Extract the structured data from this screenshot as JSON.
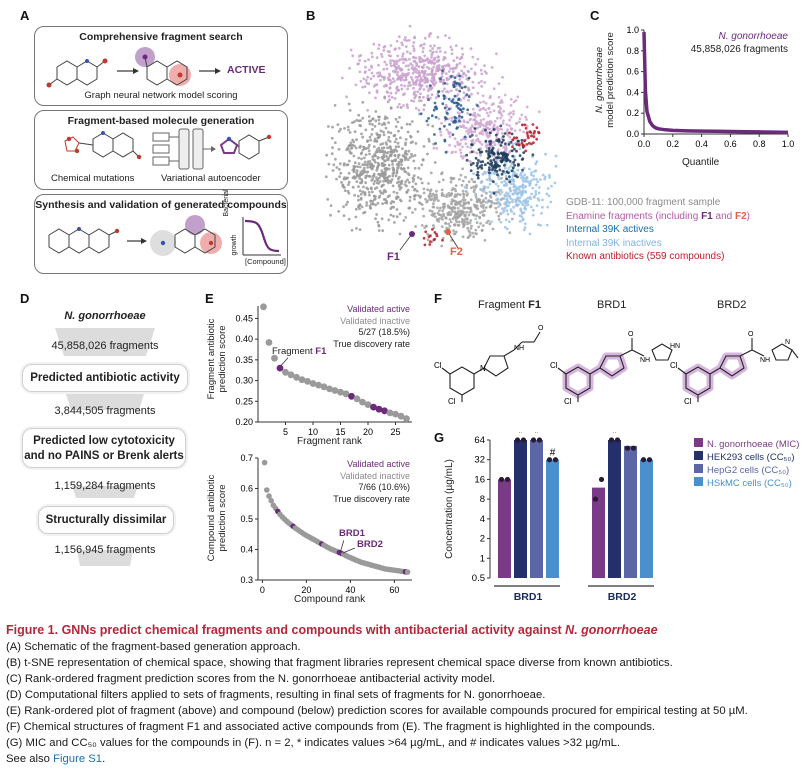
{
  "panel_a": {
    "label": "A",
    "box1_title": "Comprehensive fragment search",
    "box1_active": "ACTIVE",
    "box1_caption": "Graph neural network model scoring",
    "box2_title": "Fragment-based molecule generation",
    "box2_left_caption": "Chemical mutations",
    "box2_right_caption": "Variational autoencoder",
    "box3_title": "Synthesis and validation of generated compounds",
    "box3_ylabel_1": "Bacterial",
    "box3_ylabel_2": "growth",
    "box3_xlabel": "[Compound]"
  },
  "panel_b": {
    "label": "B",
    "f1": "F1",
    "f2": "F2",
    "legend": [
      {
        "text": "GDB-11: 100,000 fragment sample",
        "color": "#8c8c8c"
      },
      {
        "text": "Enamine fragments (including ",
        "bold1": "F1",
        "mid": " and ",
        "bold2": "F2",
        "end": ")",
        "color": "#b65aa8"
      },
      {
        "text": "Internal 39K actives",
        "color": "#1a6fb0"
      },
      {
        "text": "Internal 39K inactives",
        "color": "#7fb3e0"
      },
      {
        "text": "Known antibiotics (559 compounds)",
        "color": "#b81e2a"
      }
    ]
  },
  "panel_c": {
    "label": "C",
    "legend_line1": "N. gonorrhoeae",
    "legend_line2": "45,858,026 fragments",
    "ylabel_1": "N. gonorrhoeae",
    "ylabel_2": "model prediction score",
    "xlabel": "Quantile",
    "chart_data": {
      "type": "line",
      "x": [
        0.0,
        0.005,
        0.01,
        0.02,
        0.04,
        0.06,
        0.08,
        0.1,
        0.15,
        0.2,
        0.3,
        0.4,
        0.5,
        0.6,
        0.7,
        0.8,
        0.9,
        1.0
      ],
      "y": [
        0.98,
        0.7,
        0.42,
        0.22,
        0.12,
        0.08,
        0.06,
        0.05,
        0.04,
        0.035,
        0.03,
        0.028,
        0.026,
        0.024,
        0.022,
        0.02,
        0.018,
        0.015
      ],
      "xlim": [
        0,
        1
      ],
      "ylim": [
        0,
        1
      ],
      "xticks": [
        "0.0",
        "0.2",
        "0.4",
        "0.6",
        "0.8",
        "1.0"
      ],
      "yticks": [
        "0.0",
        "0.2",
        "0.4",
        "0.6",
        "0.8",
        "1.0"
      ],
      "color": "#6b2a7a"
    }
  },
  "panel_d": {
    "label": "D",
    "title": "N. gonorrhoeae",
    "steps": [
      {
        "count": "45,858,026 fragments",
        "filter": "Predicted antibiotic activity"
      },
      {
        "count": "3,844,505 fragments",
        "filter": "Predicted low cytotoxicity and no PAINS or Brenk alerts"
      },
      {
        "count": "1,159,284 fragments",
        "filter": "Structurally dissimilar"
      },
      {
        "count": "1,156,945 fragments",
        "filter": ""
      }
    ]
  },
  "panel_e": {
    "label": "E",
    "top": {
      "legend_active": "Validated active",
      "legend_inactive": "Validated inactive",
      "legend_ratio": "5/27 (18.5%)",
      "legend_rate": "True discovery rate",
      "ylabel_1": "Fragment antibiotic",
      "ylabel_2": "prediction score",
      "xlabel": "Fragment rank",
      "annotation_prefix": "Fragment ",
      "annotation_bold": "F1",
      "chart_data": {
        "type": "scatter",
        "x": [
          1,
          2,
          3,
          4,
          5,
          6,
          7,
          8,
          9,
          10,
          11,
          12,
          13,
          14,
          15,
          16,
          17,
          18,
          19,
          20,
          21,
          22,
          23,
          24,
          25,
          26,
          27
        ],
        "y": [
          0.478,
          0.392,
          0.354,
          0.33,
          0.32,
          0.314,
          0.308,
          0.302,
          0.298,
          0.293,
          0.289,
          0.285,
          0.28,
          0.276,
          0.272,
          0.268,
          0.262,
          0.256,
          0.248,
          0.242,
          0.236,
          0.231,
          0.227,
          0.222,
          0.219,
          0.214,
          0.208
        ],
        "active": [
          0,
          0,
          0,
          1,
          0,
          0,
          0,
          0,
          0,
          0,
          0,
          0,
          0,
          0,
          0,
          0,
          1,
          0,
          0,
          0,
          1,
          1,
          1,
          0,
          0,
          0,
          0
        ],
        "xlim": [
          0,
          28
        ],
        "ylim": [
          0.2,
          0.48
        ],
        "xticks": [
          "5",
          "10",
          "15",
          "20",
          "25"
        ],
        "yticks": [
          "0.20",
          "0.25",
          "0.30",
          "0.35",
          "0.40",
          "0.45"
        ]
      }
    },
    "bottom": {
      "legend_active": "Validated active",
      "legend_inactive": "Validated inactive",
      "legend_ratio": "7/66 (10.6%)",
      "legend_rate": "True discovery rate",
      "ylabel_1": "Compound antibiotic",
      "ylabel_2": "prediction score",
      "xlabel": "Compound rank",
      "annotation_1": "BRD1",
      "annotation_2": "BRD2",
      "chart_data": {
        "type": "scatter",
        "x": [
          1,
          2,
          3,
          4,
          5,
          6,
          7,
          8,
          9,
          10,
          11,
          12,
          13,
          14,
          15,
          16,
          17,
          18,
          19,
          20,
          21,
          22,
          23,
          24,
          25,
          26,
          27,
          28,
          29,
          30,
          31,
          32,
          33,
          34,
          35,
          36,
          37,
          38,
          39,
          40,
          41,
          42,
          43,
          44,
          45,
          46,
          47,
          48,
          49,
          50,
          51,
          52,
          53,
          54,
          55,
          56,
          57,
          58,
          59,
          60,
          61,
          62,
          63,
          64,
          65,
          66
        ],
        "y": [
          0.685,
          0.595,
          0.575,
          0.56,
          0.545,
          0.535,
          0.525,
          0.515,
          0.507,
          0.5,
          0.493,
          0.487,
          0.481,
          0.476,
          0.47,
          0.465,
          0.46,
          0.455,
          0.45,
          0.446,
          0.442,
          0.438,
          0.434,
          0.43,
          0.426,
          0.422,
          0.418,
          0.414,
          0.41,
          0.406,
          0.402,
          0.399,
          0.396,
          0.393,
          0.39,
          0.387,
          0.384,
          0.38,
          0.376,
          0.373,
          0.37,
          0.367,
          0.364,
          0.361,
          0.358,
          0.356,
          0.354,
          0.352,
          0.35,
          0.348,
          0.346,
          0.344,
          0.342,
          0.34,
          0.338,
          0.336,
          0.335,
          0.334,
          0.333,
          0.332,
          0.331,
          0.33,
          0.329,
          0.328,
          0.327,
          0.326
        ],
        "active": [
          0,
          0,
          0,
          0,
          0,
          0,
          1,
          0,
          0,
          0,
          0,
          0,
          0,
          1,
          0,
          0,
          0,
          0,
          0,
          0,
          0,
          0,
          0,
          0,
          0,
          0,
          1,
          0,
          0,
          0,
          0,
          0,
          0,
          0,
          1,
          1,
          0,
          0,
          0,
          0,
          0,
          0,
          0,
          0,
          0,
          0,
          0,
          0,
          0,
          0,
          0,
          0,
          0,
          0,
          0,
          0,
          0,
          0,
          0,
          0,
          0,
          0,
          0,
          0,
          1,
          0
        ],
        "xlim": [
          -2,
          68
        ],
        "ylim": [
          0.3,
          0.7
        ],
        "xticks": [
          "0",
          "20",
          "40",
          "60"
        ],
        "yticks": [
          "0.3",
          "0.4",
          "0.5",
          "0.6",
          "0.7"
        ]
      }
    }
  },
  "panel_f": {
    "label": "F",
    "name1_prefix": "Fragment ",
    "name1_bold": "F1",
    "name2": "BRD1",
    "name3": "BRD2",
    "atom_cl": "Cl",
    "atom_n": "N",
    "atom_o": "O",
    "atom_nh": "NH",
    "atom_hn": "HN"
  },
  "panel_g": {
    "label": "G",
    "ylabel": "Concentration (µg/mL)",
    "groups": [
      "BRD1",
      "BRD2"
    ],
    "legend": [
      {
        "name": "N. gonorrhoeae (MIC)",
        "color": "#7a3b86"
      },
      {
        "name": "HEK293 cells (CC₅₀)",
        "color": "#23306b"
      },
      {
        "name": "HepG2 cells (CC₅₀)",
        "color": "#5a66a6"
      },
      {
        "name": "HSkMC cells (CC₅₀)",
        "color": "#4a90cc"
      }
    ],
    "chart_data": {
      "type": "bar",
      "scale": "log2",
      "categories": [
        "BRD1",
        "BRD2"
      ],
      "series": [
        {
          "name": "N. gonorrhoeae (MIC)",
          "values": [
            16,
            12
          ],
          "points": [
            [
              16,
              16
            ],
            [
              8,
              16
            ]
          ],
          "mark": [
            "",
            ""
          ]
        },
        {
          "name": "HEK293 cells (CC50)",
          "values": [
            64,
            64
          ],
          "points": [
            [
              64,
              64
            ],
            [
              64,
              64
            ]
          ],
          "mark": [
            "*",
            "*"
          ]
        },
        {
          "name": "HepG2 cells (CC50)",
          "values": [
            64,
            52
          ],
          "points": [
            [
              64,
              64
            ],
            [
              48,
              48
            ]
          ],
          "mark": [
            "*",
            ""
          ]
        },
        {
          "name": "HSkMC cells (CC50)",
          "values": [
            32,
            32
          ],
          "points": [
            [
              32,
              32
            ],
            [
              32,
              32
            ]
          ],
          "mark": [
            "#",
            ""
          ]
        }
      ],
      "yticks": [
        "0.5",
        "1",
        "2",
        "4",
        "8",
        "16",
        "32",
        "64"
      ],
      "ylim": [
        0.5,
        64
      ]
    }
  },
  "caption": {
    "title_plain": "Figure 1.  GNNs predict chemical fragments and compounds with antibacterial activity against ",
    "title_italic": "N. gonorrhoeae",
    "lines": [
      "(A) Schematic of the fragment-based generation approach.",
      "(B) t-SNE representation of chemical space, showing that fragment libraries represent chemical space diverse from known antibiotics.",
      "(C) Rank-ordered fragment prediction scores from the N. gonorrhoeae antibacterial activity model.",
      "(D) Computational filters applied to sets of fragments, resulting in final sets of fragments for N. gonorrhoeae.",
      "(E) Rank-ordered plot of fragment (above) and compound (below) prediction scores for available compounds procured for empirical testing at 50 µM.",
      "(F) Chemical structures of fragment F1 and associated active compounds from (E). The fragment is highlighted in the compounds.",
      "(G) MIC and CC₅₀ values for the compounds in (F). n = 2, * indicates values >64 µg/mL, and # indicates values >32 µg/mL."
    ],
    "see_also": "See also ",
    "see_also_link": "Figure S1",
    "see_also_end": "."
  }
}
